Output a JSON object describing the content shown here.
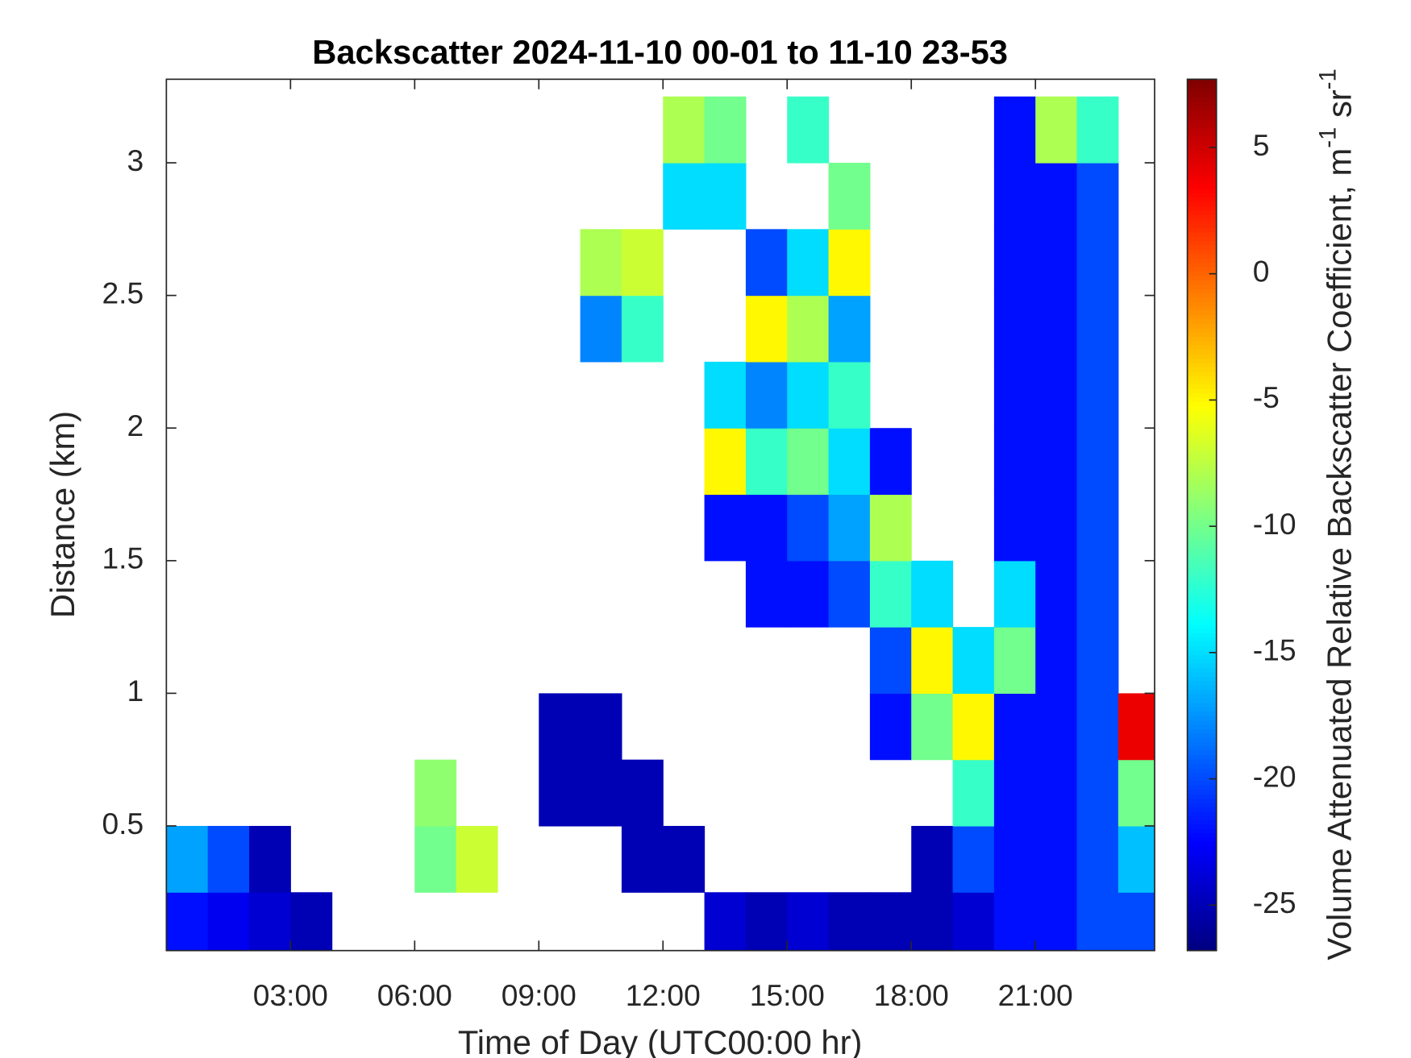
{
  "chart_data": {
    "type": "heatmap",
    "title": "Backscatter 2024-11-10 00-01 to 11-10 23-53",
    "x_label": "Time of Day (UTC00:00 hr)",
    "y_label": "Distance (km)",
    "colorbar_label": [
      "Volume Attenuated Relative Backscatter Coefficient, m",
      "-1",
      " sr",
      "-1"
    ],
    "colormap": "jet",
    "x": [
      0.5,
      1.5,
      2.5,
      3.5,
      4.5,
      5.5,
      6.5,
      7.5,
      8.5,
      9.5,
      10.5,
      11.5,
      12.5,
      13.5,
      14.5,
      15.5,
      16.5,
      17.5,
      18.5,
      19.5,
      20.5,
      21.5,
      22.5,
      23.5
    ],
    "y": [
      0.125,
      0.375,
      0.625,
      0.875,
      1.125,
      1.375,
      1.625,
      1.875,
      2.125,
      2.375,
      2.625,
      2.875,
      3.125
    ],
    "z": [
      [
        -22,
        -23,
        -24,
        -25,
        null,
        null,
        null,
        null,
        null,
        null,
        null,
        null,
        null,
        -24,
        -25,
        -24,
        -25,
        -25,
        -25,
        -24,
        -22,
        -22,
        -20,
        -20
      ],
      [
        -17,
        -20,
        -25,
        null,
        null,
        null,
        -10,
        -7,
        null,
        null,
        null,
        -25,
        -25,
        null,
        null,
        null,
        null,
        null,
        -25,
        -20,
        -22,
        -22,
        -20,
        -16
      ],
      [
        null,
        null,
        null,
        null,
        null,
        null,
        -9,
        null,
        null,
        -25,
        -25,
        -25,
        null,
        null,
        null,
        null,
        null,
        null,
        null,
        -12,
        -22,
        -22,
        -20,
        -10
      ],
      [
        null,
        null,
        null,
        null,
        null,
        null,
        null,
        null,
        null,
        -25,
        -25,
        null,
        null,
        null,
        null,
        null,
        null,
        -22,
        -10,
        -5,
        -22,
        -22,
        -20,
        4
      ],
      [
        null,
        null,
        null,
        null,
        null,
        null,
        null,
        null,
        null,
        null,
        null,
        null,
        null,
        null,
        null,
        null,
        null,
        -20,
        -5,
        -15,
        -10,
        -22,
        -20,
        null
      ],
      [
        null,
        null,
        null,
        null,
        null,
        null,
        null,
        null,
        null,
        null,
        null,
        null,
        null,
        null,
        -22,
        -22,
        -20,
        -12,
        -15,
        null,
        -15,
        -22,
        -20,
        null
      ],
      [
        null,
        null,
        null,
        null,
        null,
        null,
        null,
        null,
        null,
        null,
        null,
        null,
        null,
        -22,
        -22,
        -20,
        -17,
        -8,
        null,
        null,
        -22,
        -22,
        -20,
        null
      ],
      [
        null,
        null,
        null,
        null,
        null,
        null,
        null,
        null,
        null,
        null,
        null,
        null,
        null,
        -5,
        -12,
        -10,
        -15,
        -22,
        null,
        null,
        -22,
        -22,
        -20,
        null
      ],
      [
        null,
        null,
        null,
        null,
        null,
        null,
        null,
        null,
        null,
        null,
        null,
        null,
        null,
        -15,
        -18,
        -15,
        -12,
        null,
        null,
        null,
        -22,
        -22,
        -20,
        null
      ],
      [
        null,
        null,
        null,
        null,
        null,
        null,
        null,
        null,
        null,
        null,
        -18,
        -12,
        null,
        null,
        -5,
        -8,
        -17,
        null,
        null,
        null,
        -22,
        -22,
        -20,
        null
      ],
      [
        null,
        null,
        null,
        null,
        null,
        null,
        null,
        null,
        null,
        null,
        -8,
        -7,
        null,
        null,
        -20,
        -15,
        -5,
        null,
        null,
        null,
        -22,
        -22,
        -20,
        null
      ],
      [
        null,
        null,
        null,
        null,
        null,
        null,
        null,
        null,
        null,
        null,
        null,
        null,
        -15,
        -15,
        null,
        null,
        -10,
        null,
        null,
        null,
        -22,
        -22,
        -20,
        null
      ],
      [
        null,
        null,
        null,
        null,
        null,
        null,
        null,
        null,
        null,
        null,
        null,
        null,
        -8,
        -10,
        null,
        -12,
        null,
        null,
        null,
        null,
        -22,
        -8,
        -12,
        null
      ]
    ],
    "xlim": [
      0,
      23.88
    ],
    "ylim": [
      0.03,
      3.315
    ],
    "clim": [
      -26.8,
      7.7
    ],
    "xticks": [
      {
        "value": 3,
        "label": "03:00"
      },
      {
        "value": 6,
        "label": "06:00"
      },
      {
        "value": 9,
        "label": "09:00"
      },
      {
        "value": 12,
        "label": "12:00"
      },
      {
        "value": 15,
        "label": "15:00"
      },
      {
        "value": 18,
        "label": "18:00"
      },
      {
        "value": 21,
        "label": "21:00"
      }
    ],
    "yticks": [
      0.5,
      1,
      1.5,
      2,
      2.5,
      3
    ],
    "cticks": [
      -25,
      -20,
      -15,
      -10,
      -5,
      0,
      5
    ]
  }
}
